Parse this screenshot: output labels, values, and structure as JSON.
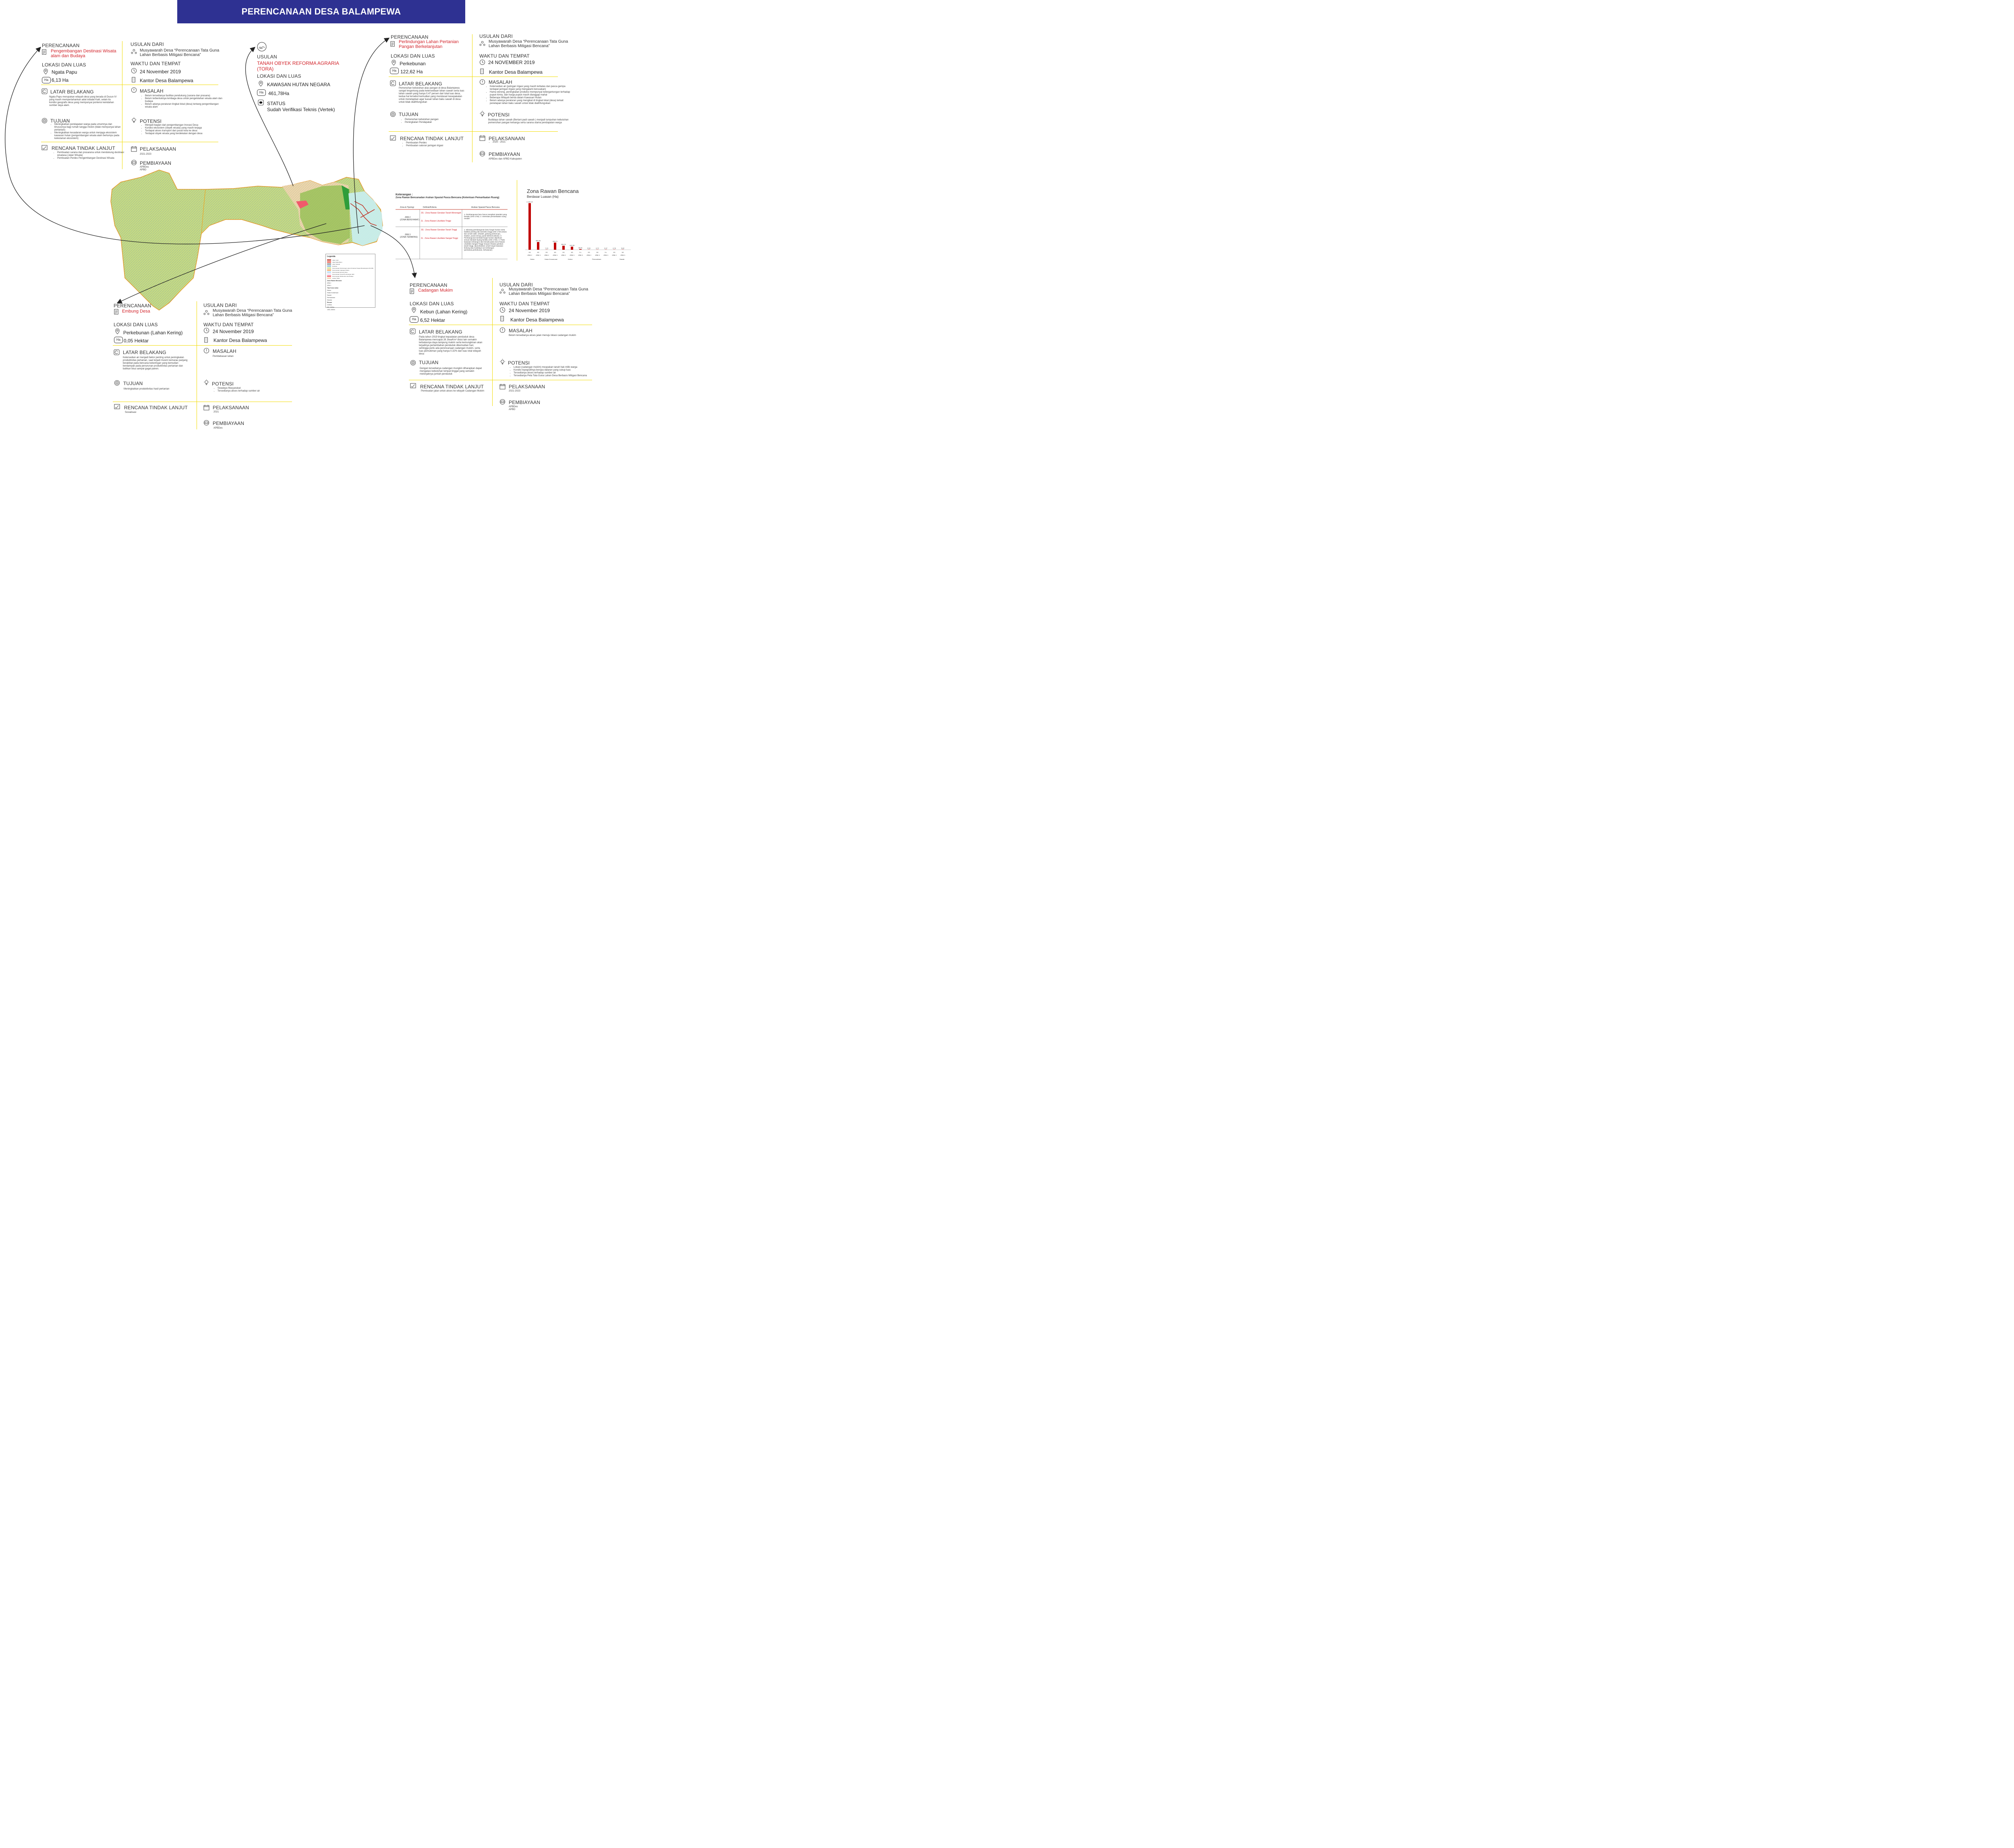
{
  "title": "PERENCANAAN DESA BALAMPEWA",
  "colors": {
    "banner": "#2e3192",
    "accent": "#d2232a",
    "divider": "#f2dc00",
    "bar": "#c00000"
  },
  "icons": [
    "document-icon",
    "people-icon",
    "location-pin-icon",
    "clock-icon",
    "building-icon",
    "refresh-icon",
    "exclamation-icon",
    "target-icon",
    "lightbulb-icon",
    "checklist-icon",
    "calendar-icon",
    "money-icon",
    "tora-seal-icon"
  ],
  "labels": {
    "perencanaan": "PERENCANAAN",
    "usulan_dari": "USULAN DARI",
    "lokasi": "LOKASI DAN LUAS",
    "waktu": "WAKTU DAN TEMPAT",
    "latar": "LATAR BELAKANG",
    "masalah": "MASALAH",
    "tujuan": "TUJUAN",
    "potensi": "POTENSI",
    "rencana": "RENCANA TINDAK LANJUT",
    "pelaksanaan": "PELAKSANAAN",
    "pembiayaan": "PEMBIAYAAN",
    "ha": "Ha",
    "usulan": "USULAN",
    "status": "STATUS"
  },
  "p1": {
    "nama": "Pengembangan Destinasi Wisata alam dan  Budaya",
    "usulan": "Musyawarah Desa “Perencanaan Tata Guna Lahan Berbasis Mitigasi Bencana”",
    "lokasi": "Ngata Papu",
    "luas": "6,13 Ha",
    "waktu": "24 November 2019",
    "tempat": "Kantor Desa Balampewa",
    "latar": "Ngata Papu merupakan wilayah desa yang berada di Dusun IV yang masih mempertahankan adat istiadat Kaili, selain itu kondisi geografis desa yang mempunyai pontensi keindahan sumber daya alam.",
    "masalah": [
      "Belum tersedianya fasilitas pendukung (sarana dan prasana)",
      "Belum terbentuknya lembaga desa untuk pengelolahan wisata alam dan budaya",
      "Belum adanya peraturan tingkat lokal (desa) tentang pengembangan wisata alam"
    ],
    "tujuan": [
      "Meningkatkan pendapatan warga pada umumnya dan khususnya bagi rumah tangga miskin (tidak mempunyai lahan pertanian)",
      "Meningkatkan kesadaran warga untuk menjaga ekosistem kawasan hutan (pengembangan wisata alam bertumpu pada kelestarian ekosistem)"
    ],
    "potensi": [
      "Menjadi bagian dari pengembangan Inovasi Desa",
      "Kondisi ekosistem (obyek wisata) yang masih terjaga",
      "Terdapat akses transport dari pusat kota ke desa",
      "Terdapat obyek wisata yang berdekatan dengan desa"
    ],
    "rencana": [
      "Pembuatan sarana dan prasarana untuk mendukung destinasi wisatasa (Jalan Wisata)",
      "Pembuatan Perdes  Pengembangan Destinasi Wisata"
    ],
    "pelaksanaan": "2021-2023",
    "pembiayaan": [
      "APBDes",
      "APBD"
    ]
  },
  "p2": {
    "nama": "TANAH OBYEK REFORMA AGRARIA (TORA)",
    "lokasi": "KAWASAN HUTAN NEGARA",
    "luas": "461,78Ha",
    "status_label": "STATUS",
    "status": "Sudah Verifikasi Teknis (Vertek)"
  },
  "p3": {
    "nama": "Perlindungan Lahan Pertanian Pangan Berkelanjutan",
    "usulan": "Musyawarah Desa “Perencanaan Tata Guna Lahan Berbasis Mitigasi Bencana”",
    "lokasi": "Perkebunan",
    "luas": "122,62 Ha",
    "waktu": "24 NOVEMBER 2019",
    "tempat": "Kantor Desa Balampewa",
    "latar": "Pemenuhan kebutuhan atas pangan di desa Balampewa sangat tergantung pada ketersediaan lahan sawah serta luas lahan sawah yang hanya 0,47  persen dari total luas desa, kedua hal tersebut kemudian yang mendasari kesepakatan untuk menetapkan agar luasan lahan baku sawah di desa untuk tidak dialihfungsikan",
    "masalah": [
      "Ketersedian air (jaringan irigasi  yang masih terbatas  dan pasca gempa terdapat jaringan irigasi yang mengalami kerusakan)",
      "Hama wereng, peningkatan produksi mempunyai ketergantungan terhadap pupuk kimia, dan harga pupuk masih dianggap mahal",
      "Beberapa Wilayah berda dalam Kawasan Hutan",
      "Belum adanya peraturan yang mengikat di tingkat lokal (desa) terkait penetapan lahan baku sawah untuk tidak dialihfungsikan"
    ],
    "tujuan": [
      "Pemenuhan kebutuhan pangan",
      "Peningkatan Pendapatan"
    ],
    "potensi": "Budidaya lahan sawah (Bertani padi sawah ) menjadi tumpuhan kebutuhan pemenuhan pangan keluarga serta sarana utama pendapatan warga",
    "rencana": [
      "Pembuatan Perdes",
      "Pembuatan saluran jaringan irigasi"
    ],
    "pelaksanaan": "2020 - 2021",
    "pembiayaan": "APBDes dan APBD Kabupaten"
  },
  "p4": {
    "nama": "Embung Desa",
    "usulan": "Musyawarah Desa “Perencanaan Tata Guna Lahan Berbasis Mitigasi Bencana”",
    "lokasi": "Perkebunan (Lahan Kering)",
    "luas": "0,05 Hektar",
    "waktu": "24 November 2019",
    "tempat": "Kantor Desa Balampewa",
    "latar": "Ketersedian air menjadi faktor penting untuk peningkatan produktivitas pertanian, saat terjadi musim kemarau panjang berakibat pada bencana kekeringan yang kemudian berdampak pada penurunan produktivitas pertanian dan bahkan bisa sampai gagal panen.",
    "masalah": "Pembebasan lahan",
    "tujuan": "Meningkatkan produktivitas hasil pertanian",
    "potensi": [
      "Swadaya Masyarakat",
      "Tersedianya akses terhadap sumber air"
    ],
    "rencana": "Sosialisasi",
    "pelaksanaan": "2021",
    "pembiayaan": "APBDes"
  },
  "p5": {
    "nama": "Cadangan Mukim",
    "usulan": "Musyawarah Desa “Perencanaan Tata Guna Lahan Berbasis Mitigasi Bencana”",
    "lokasi": "Kebun (Lahan Kering)",
    "luas": "6,52 Hektar",
    "waktu": "24 November 2019",
    "tempat": "Kantor Desa Balampewa",
    "latar": "Pada tahun 2019 tingkat kepadatan penduduk desa Balampewa mencapai 28 Jiwa/Km² disisi lain semakin terbatasnya daya tampung mukim serta kemungkinan akan terjadinya pertambahan penduduk dikemudian hari, sehingga perlu ada perencanaan cadangan mukim, serta luas pemukiman yang hanya 0.32% dari luas total wilayah desa",
    "masalah": "Belum tersedianya akses jalan menuju lokasi cadangan mukim",
    "tujuan": "Dengan tersedianya cadangan mungkin diharapkan dapat mengatasi kebutuhan tempat tinggal yang semakin melonjaknya jumlah penduduk",
    "potensi": [
      "Lokasi (cadangan mukim) meupakan tanah hak milik warga",
      "Kondisi topografinya berupa dataran yang cukup luas",
      "Tersedianya akses terhadap sumber air",
      "Tersedianya Peta Tata Guna Lahan Desa Berbasis Mitigasi Bencana"
    ],
    "rencana": "Pembuatan jalan untuk akses ke wilayah Cadangan Mukim",
    "pelaksanaan": "2021-2023",
    "pembiayaan": [
      "APBDes",
      "APBD"
    ]
  },
  "keterangan": {
    "title": "Keterangan :",
    "subtitle": "Zona Rawan Bencanadan Arahan Spasial Pasca Bencana (Ketentuan Pemanfaatan Ruang)",
    "headers": [
      "Zona & Tipologi",
      "Definisi/Kriteria",
      "Arahan Spasial Pasca Bencana"
    ],
    "rows": [
      {
        "zona": "ZRB 2",
        "sub": "(ZONA BERSYARAT)",
        "kriteria": [
          "2G : Zona Rawan Gerakan Tanah Menengah",
          "2L : Zona Rawan Likuifaksi Tinggi"
        ],
        "arahan": "1. Pembangunan baru harus mengikuti standart yang berlaku (SNI 1726). 2. Intensitas pemanfaatan ruang rendah"
      },
      {
        "zona": "ZRB 3",
        "sub": "(ZONA TERBATAS)",
        "kriteria": [
          "3G : Zona Rawan Gerakan Tanah Tinggi",
          "2L : Zona Rawan Likuifaksi Sangat Tinggi"
        ],
        "arahan": "1. Dilarang pembangunan baru fungsi hunian serta fasilitas penting dan beresiko tinggi (SNI 1726 antara lain rumah sakit, sekolah, gedung pertemuan, stadion, pusat energi, pusat telekomunikasi). 2. Pembangunan kembali fungsi hunian diperkuat sesuai standart byang berlaku (SNI 1726). 3. Pada kawasan terbangun dan berada pada Zona Rawan Likuifaksi Sangat Tinggi meupun Rawan gerakan tanah tinggi, diprioritaskan untuk fungsi kawasan lindung atau budidaya non-terbangun (pertanian,perkebunan, kehutanan)"
      }
    ]
  },
  "legenda": {
    "title": "Legenda",
    "items": [
      "Jalan Lokal",
      "Jalan Rabat Beton",
      "Jalan Setapak",
      "Drainase",
      "Perencanaan Perlindungan Lahan Pertanian Pangan Berkelanjutan (PLP2B)",
      "Perencanaan Cadangan Mukim",
      "Perencanaan Embung Desa",
      "Perencanaan Tempat Pembuangan Akhir",
      "Perencanaan Wisata Alam dan Budaya",
      "Usulan TORA"
    ],
    "zona_title": "Zona Rawan Bencana",
    "zona": [
      "ZRB 2",
      "ZRB 3"
    ],
    "tutupan_title": "Tata Guna Lahan",
    "tutupan": [
      "Kebun",
      "Hutan Konservasi",
      "Sawah",
      "Permukiman",
      "Savana"
    ],
    "elevasi_title": "Elevasi",
    "elevasi": [
      "0-500m",
      "501-1000m",
      "1001-1500m"
    ]
  },
  "chart_data": {
    "type": "bar",
    "title": "Zona Rawan Bencana",
    "subtitle": "Berdasar Luasan (Ha)",
    "ylim": [
      0,
      2200
    ],
    "categories": [
      "2G ZRB 2",
      "3G ZRB 3",
      "2G ZRB 2",
      "3G ZRB 3",
      "2G ZRB 2",
      "3G ZRB 3",
      "3 L ZRB 3",
      "2G ZRB 2",
      "3G ZRB 3",
      "3 L ZRB 3",
      "2G ZRB 2",
      "3G ZRB 3"
    ],
    "values": [
      2157.22,
      355.8,
      7.23,
      328.71,
      184.31,
      140.95,
      28.91,
      5.5,
      3.72,
      0.37,
      4.78,
      5.82
    ],
    "value_labels": [
      "2.157,22",
      "355,80",
      "7,23",
      "328,71",
      "184,31",
      "140,95",
      "28,91",
      "5,50",
      "3,72",
      "0,37",
      "4,78",
      "5,82"
    ],
    "groups": [
      "Hutan",
      "Hutan Konservasi",
      "Kebun",
      "Permukiman",
      "Sawah"
    ]
  }
}
